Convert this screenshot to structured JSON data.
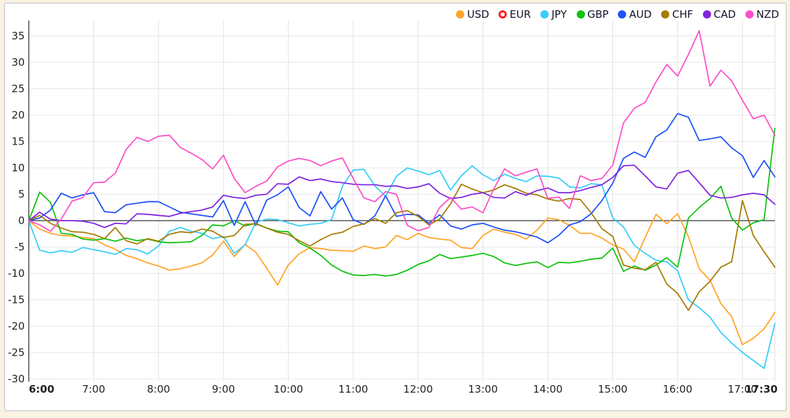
{
  "colors": {
    "background": "#faf3e1",
    "panel": "#ffffff",
    "grid": "#e7e7e7",
    "axis": "#444444",
    "zero_line": "#333333",
    "tick_text": "#222222"
  },
  "chart_data": {
    "type": "line",
    "title": "",
    "xlabel": "",
    "ylabel": "",
    "grid": true,
    "legend_position": "top-right",
    "ylim": [
      -30,
      37.5
    ],
    "y_ticks": [
      35,
      30,
      25,
      20,
      15,
      10,
      5,
      0,
      -5,
      -10,
      -15,
      -20,
      -25,
      -30
    ],
    "x_ticks": [
      {
        "label": "6:00",
        "minutes": 0,
        "bold": true
      },
      {
        "label": "7:00",
        "minutes": 60,
        "bold": false
      },
      {
        "label": "8:00",
        "minutes": 120,
        "bold": false
      },
      {
        "label": "9:00",
        "minutes": 180,
        "bold": false
      },
      {
        "label": "10:00",
        "minutes": 240,
        "bold": false
      },
      {
        "label": "11:00",
        "minutes": 300,
        "bold": false
      },
      {
        "label": "12:00",
        "minutes": 360,
        "bold": false
      },
      {
        "label": "13:00",
        "minutes": 420,
        "bold": false
      },
      {
        "label": "14:00",
        "minutes": 480,
        "bold": false
      },
      {
        "label": "15:00",
        "minutes": 540,
        "bold": false
      },
      {
        "label": "16:00",
        "minutes": 600,
        "bold": false
      },
      {
        "label": "17:00",
        "minutes": 660,
        "bold": false
      },
      {
        "label": "17:30",
        "minutes": 690,
        "bold": true
      }
    ],
    "sample_interval_minutes": 10,
    "start_time": "6:00",
    "end_time": "17:30",
    "series": [
      {
        "name": "USD",
        "color": "#ffa428",
        "hidden": false,
        "values": [
          0,
          -1.6,
          -2.4,
          -2.8,
          -2.9,
          -3.2,
          -3.4,
          -4.6,
          -5.4,
          -6.6,
          -7.2,
          -8.0,
          -8.6,
          -9.4,
          -9.1,
          -8.6,
          -8.0,
          -6.5,
          -3.9,
          -6.8,
          -4.5,
          -6.0,
          -9.0,
          -12.2,
          -8.4,
          -6.3,
          -5.1,
          -5.3,
          -5.6,
          -5.7,
          -5.8,
          -4.8,
          -5.3,
          -5.0,
          -2.8,
          -3.6,
          -2.4,
          -3.2,
          -3.5,
          -3.7,
          -5.1,
          -5.3,
          -2.8,
          -1.6,
          -2.2,
          -2.6,
          -3.5,
          -1.8,
          0.5,
          0.2,
          -0.9,
          -2.4,
          -2.4,
          -3.3,
          -4.6,
          -5.4,
          -7.8,
          -3.2,
          1.2,
          -0.6,
          1.3,
          -3.0,
          -9.1,
          -11.3,
          -15.7,
          -18.2,
          -23.5,
          -22.3,
          -20.5,
          -17.4
        ]
      },
      {
        "name": "EUR",
        "color": "#ff2020",
        "hidden": true,
        "values": []
      },
      {
        "name": "JPY",
        "color": "#38cdf8",
        "hidden": false,
        "values": [
          0,
          -5.6,
          -6.1,
          -5.7,
          -6.0,
          -5.1,
          -5.5,
          -5.9,
          -6.4,
          -5.3,
          -5.5,
          -6.3,
          -4.8,
          -2.0,
          -1.3,
          -2.0,
          -2.4,
          -3.4,
          -3.0,
          -6.2,
          -4.6,
          -0.3,
          0.3,
          0.2,
          -0.4,
          -1.0,
          -0.7,
          -0.5,
          0.2,
          6.5,
          9.6,
          9.7,
          6.6,
          4.6,
          8.4,
          10.0,
          9.4,
          8.7,
          9.5,
          5.8,
          8.5,
          10.4,
          8.7,
          7.6,
          8.8,
          8.0,
          7.4,
          8.5,
          8.4,
          8.1,
          6.4,
          6.2,
          7.0,
          6.8,
          0.5,
          -1.2,
          -4.7,
          -6.2,
          -7.5,
          -7.8,
          -9.5,
          -15.0,
          -16.5,
          -18.3,
          -21.2,
          -23.2,
          -25.0,
          -26.5,
          -28.0,
          -19.5
        ]
      },
      {
        "name": "GBP",
        "color": "#11c211",
        "hidden": false,
        "values": [
          0,
          5.4,
          3.5,
          -2.4,
          -2.6,
          -3.5,
          -3.7,
          -3.4,
          -3.9,
          -3.3,
          -3.8,
          -3.5,
          -4.0,
          -4.2,
          -4.1,
          -4.0,
          -2.8,
          -0.8,
          -1.0,
          0.0,
          -1.0,
          -0.5,
          -1.4,
          -2.0,
          -2.1,
          -4.2,
          -5.2,
          -6.6,
          -8.4,
          -9.6,
          -10.3,
          -10.4,
          -10.2,
          -10.5,
          -10.2,
          -9.4,
          -8.3,
          -7.6,
          -6.4,
          -7.2,
          -6.9,
          -6.6,
          -6.2,
          -6.8,
          -8.0,
          -8.5,
          -8.1,
          -7.8,
          -8.9,
          -7.9,
          -8.0,
          -7.7,
          -7.3,
          -7.1,
          -5.2,
          -9.6,
          -8.6,
          -9.4,
          -8.4,
          -7.0,
          -8.8,
          0.5,
          2.5,
          4.2,
          6.5,
          0.5,
          -1.8,
          -0.4,
          0.2,
          17.5
        ]
      },
      {
        "name": "AUD",
        "color": "#2052f8",
        "hidden": false,
        "values": [
          0,
          0.5,
          2.0,
          5.2,
          4.3,
          4.9,
          5.3,
          1.7,
          1.5,
          3.0,
          3.3,
          3.6,
          3.6,
          2.6,
          1.6,
          1.3,
          1.0,
          0.7,
          3.8,
          -0.9,
          3.6,
          -0.9,
          3.9,
          4.9,
          6.4,
          2.5,
          0.9,
          5.5,
          2.2,
          4.3,
          0.2,
          -0.7,
          0.9,
          4.7,
          0.8,
          1.2,
          1.1,
          -0.5,
          1.1,
          -1.0,
          -1.6,
          -0.8,
          -0.5,
          -1.2,
          -1.8,
          -2.1,
          -2.6,
          -3.1,
          -4.2,
          -2.8,
          -0.8,
          -0.2,
          1.3,
          3.8,
          7.1,
          11.8,
          13.0,
          12.0,
          15.9,
          17.2,
          20.3,
          19.6,
          15.2,
          15.5,
          15.9,
          13.8,
          12.3,
          8.2,
          11.4,
          8.3
        ]
      },
      {
        "name": "CHF",
        "color": "#a57c00",
        "hidden": false,
        "values": [
          0,
          1.0,
          -0.5,
          -1.4,
          -2.1,
          -2.2,
          -2.6,
          -3.4,
          -1.3,
          -3.8,
          -4.4,
          -3.4,
          -3.9,
          -2.6,
          -2.1,
          -2.3,
          -1.6,
          -2.0,
          -3.2,
          -2.8,
          -0.7,
          -0.6,
          -1.4,
          -2.2,
          -2.6,
          -3.8,
          -4.8,
          -3.6,
          -2.6,
          -2.2,
          -1.1,
          -0.6,
          0.4,
          -0.5,
          1.5,
          1.9,
          0.8,
          -0.8,
          0.3,
          3.2,
          6.9,
          6.0,
          5.3,
          5.8,
          6.8,
          6.1,
          5.2,
          4.9,
          4.1,
          3.7,
          4.2,
          4.0,
          1.5,
          -1.5,
          -3.0,
          -8.4,
          -9.0,
          -9.3,
          -7.9,
          -12.0,
          -13.8,
          -17.0,
          -13.5,
          -11.5,
          -8.8,
          -7.8,
          3.8,
          -2.8,
          -5.9,
          -8.8
        ]
      },
      {
        "name": "CAD",
        "color": "#8125e0",
        "hidden": false,
        "values": [
          0,
          1.6,
          0.3,
          0.0,
          0.0,
          -0.1,
          -0.5,
          -1.3,
          -0.5,
          -0.6,
          1.3,
          1.2,
          1.0,
          0.8,
          1.4,
          1.7,
          2.0,
          2.6,
          4.8,
          4.4,
          4.2,
          4.8,
          5.0,
          7.0,
          6.9,
          8.3,
          7.6,
          7.9,
          7.4,
          7.2,
          6.9,
          6.8,
          6.8,
          6.5,
          6.6,
          6.1,
          6.4,
          7.0,
          5.2,
          4.2,
          4.4,
          5.0,
          5.3,
          4.4,
          4.3,
          5.5,
          4.8,
          5.7,
          6.2,
          5.3,
          5.3,
          5.7,
          6.3,
          6.8,
          8.2,
          10.4,
          10.5,
          8.5,
          6.4,
          6.0,
          9.0,
          9.5,
          7.2,
          4.8,
          4.3,
          4.4,
          4.9,
          5.2,
          4.9,
          3.1
        ]
      },
      {
        "name": "NZD",
        "color": "#fc50c8",
        "hidden": false,
        "values": [
          0,
          -0.8,
          -2.0,
          0.3,
          3.7,
          4.4,
          7.2,
          7.3,
          9.0,
          13.5,
          15.8,
          15.0,
          16.0,
          16.2,
          13.9,
          12.8,
          11.6,
          9.8,
          12.4,
          8.0,
          5.3,
          6.5,
          7.5,
          10.2,
          11.3,
          11.8,
          11.4,
          10.4,
          11.3,
          11.9,
          8.0,
          4.3,
          3.6,
          5.5,
          5.0,
          -0.9,
          -1.9,
          -1.3,
          2.5,
          4.4,
          2.2,
          2.6,
          1.5,
          6.0,
          9.8,
          8.5,
          9.2,
          9.8,
          4.2,
          4.5,
          2.3,
          8.5,
          7.6,
          8.0,
          10.5,
          18.5,
          21.3,
          22.4,
          26.3,
          29.6,
          27.4,
          31.5,
          36.0,
          25.5,
          28.5,
          26.5,
          22.8,
          19.3,
          20.0,
          16.2
        ]
      }
    ]
  }
}
